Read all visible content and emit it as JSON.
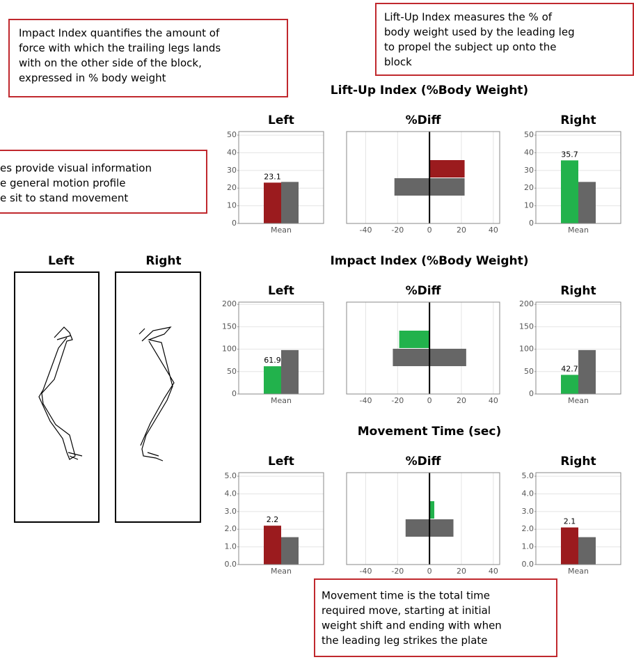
{
  "annotations": [
    {
      "lines": [
        "Impact Index quantifies the amount of",
        "force with which the trailing legs lands",
        "with on the other side of the block,",
        "expressed in % body weight"
      ]
    },
    {
      "lines": [
        "Lift-Up Index measures the % of",
        "body weight used by the leading leg",
        "to propel the subject up onto the",
        "block"
      ]
    },
    {
      "lines": [
        "es provide visual information",
        "e general motion profile",
        "e sit to stand movement"
      ]
    },
    {
      "lines": [
        "Movement time is the total time",
        "required move, starting at initial",
        "weight shift and ending with when",
        "the leading leg strikes the plate"
      ]
    }
  ],
  "motion_figure": {
    "labels": [
      "Left",
      "Right"
    ]
  },
  "sections": [
    "Lift-Up Index (%Body Weight)",
    "Impact Index (%Body Weight)",
    "Movement Time (sec)"
  ],
  "chart_data": [
    {
      "type": "bar",
      "title": "Left",
      "categories": [
        "Mean"
      ],
      "series": [
        {
          "color": "#9b1b1e",
          "values": [
            23.1
          ],
          "show_labels": true
        },
        {
          "color": "#666666",
          "values": [
            23.5
          ]
        }
      ],
      "ylim": [
        0,
        52
      ],
      "yticks": [
        0,
        10,
        20,
        30,
        40,
        50
      ],
      "grid": true
    },
    {
      "type": "diverging",
      "title": "%Diff",
      "series": [
        {
          "color": "#9b1b1e",
          "values": [
            22
          ]
        },
        {
          "color": "#666666",
          "low": [
            -22
          ],
          "high": [
            22
          ]
        }
      ],
      "xlim": [
        -52,
        44
      ],
      "xticks": [
        -40,
        -20,
        0,
        20,
        40
      ],
      "grid": true
    },
    {
      "type": "bar",
      "title": "Right",
      "categories": [
        "Mean"
      ],
      "series": [
        {
          "color": "#22b24c",
          "values": [
            35.7
          ],
          "show_labels": true
        },
        {
          "color": "#666666",
          "values": [
            23.5
          ]
        }
      ],
      "ylim": [
        0,
        52
      ],
      "yticks": [
        0,
        10,
        20,
        30,
        40,
        50
      ],
      "grid": true
    },
    {
      "type": "bar",
      "title": "Left",
      "categories": [
        "Mean"
      ],
      "series": [
        {
          "color": "#22b24c",
          "values": [
            61.9
          ],
          "show_labels": true
        },
        {
          "color": "#666666",
          "values": [
            98
          ]
        }
      ],
      "ylim": [
        0,
        205
      ],
      "yticks": [
        0,
        50,
        100,
        150,
        200
      ],
      "grid": true
    },
    {
      "type": "diverging",
      "title": "%Diff",
      "series": [
        {
          "color": "#22b24c",
          "values": [
            -19
          ]
        },
        {
          "color": "#666666",
          "low": [
            -23
          ],
          "high": [
            23
          ]
        }
      ],
      "xlim": [
        -52,
        44
      ],
      "xticks": [
        -40,
        -20,
        0,
        20,
        40
      ],
      "grid": true
    },
    {
      "type": "bar",
      "title": "Right",
      "categories": [
        "Mean"
      ],
      "series": [
        {
          "color": "#22b24c",
          "values": [
            42.7
          ],
          "show_labels": true
        },
        {
          "color": "#666666",
          "values": [
            98
          ]
        }
      ],
      "ylim": [
        0,
        205
      ],
      "yticks": [
        0,
        50,
        100,
        150,
        200
      ],
      "grid": true
    },
    {
      "type": "bar",
      "title": "Left",
      "categories": [
        "Mean"
      ],
      "series": [
        {
          "color": "#9b1b1e",
          "values": [
            2.2
          ],
          "show_labels": true
        },
        {
          "color": "#666666",
          "values": [
            1.55
          ]
        }
      ],
      "ylim": [
        0,
        5.2
      ],
      "yticks": [
        {
          "value": 0,
          "label": "0.0"
        },
        {
          "value": 1,
          "label": "1.0"
        },
        {
          "value": 2,
          "label": "2.0"
        },
        {
          "value": 3,
          "label": "3.0"
        },
        {
          "value": 4,
          "label": "4.0"
        },
        {
          "value": 5,
          "label": "5.0"
        }
      ],
      "grid": true
    },
    {
      "type": "diverging",
      "title": "%Diff",
      "series": [
        {
          "color": "#22b24c",
          "values": [
            3
          ]
        },
        {
          "color": "#666666",
          "low": [
            -15
          ],
          "high": [
            15
          ]
        }
      ],
      "xlim": [
        -52,
        44
      ],
      "xticks": [
        -40,
        -20,
        0,
        20,
        40
      ],
      "grid": true
    },
    {
      "type": "bar",
      "title": "Right",
      "categories": [
        "Mean"
      ],
      "series": [
        {
          "color": "#9b1b1e",
          "values": [
            2.1
          ],
          "show_labels": true
        },
        {
          "color": "#666666",
          "values": [
            1.55
          ]
        }
      ],
      "ylim": [
        0,
        5.2
      ],
      "yticks": [
        {
          "value": 0,
          "label": "0.0"
        },
        {
          "value": 1,
          "label": "1.0"
        },
        {
          "value": 2,
          "label": "2.0"
        },
        {
          "value": 3,
          "label": "3.0"
        },
        {
          "value": 4,
          "label": "4.0"
        },
        {
          "value": 5,
          "label": "5.0"
        }
      ],
      "grid": true
    }
  ]
}
